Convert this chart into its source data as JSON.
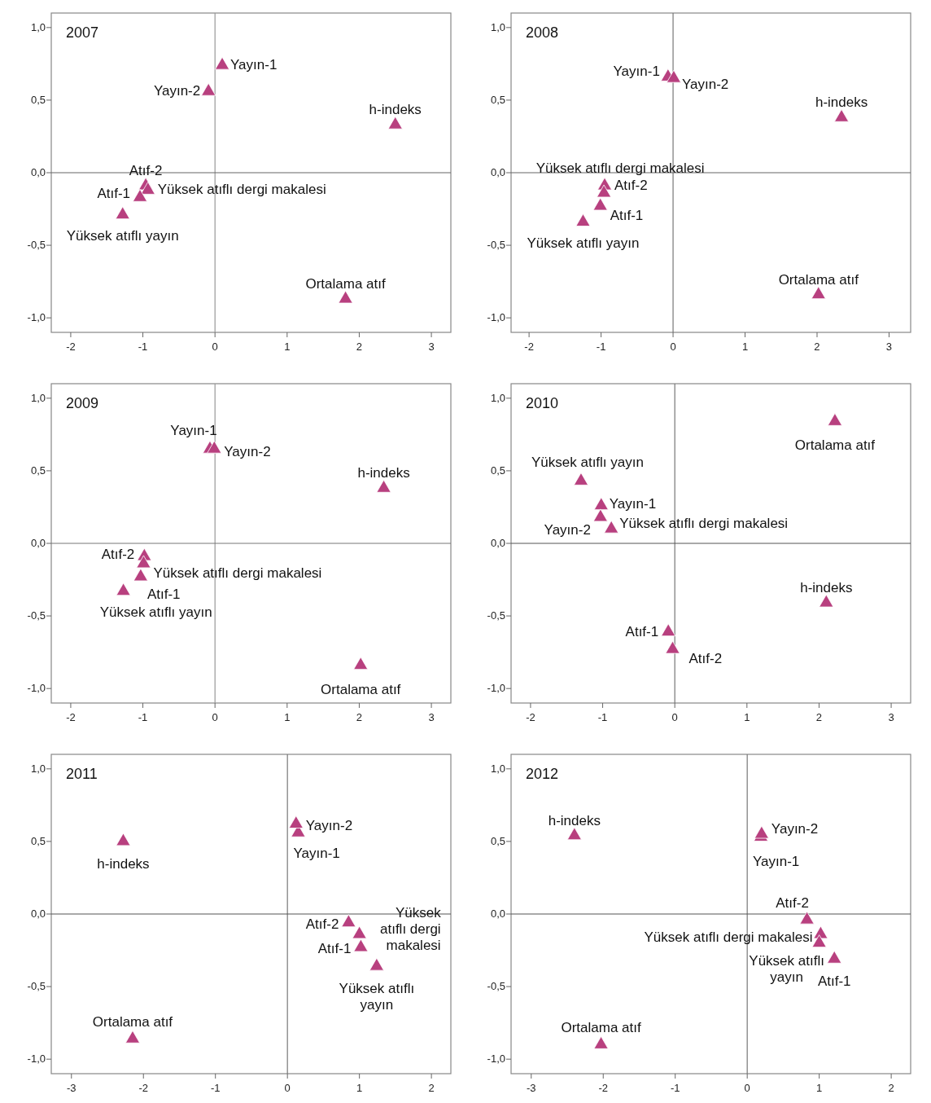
{
  "chart_data": [
    {
      "type": "scatter",
      "title": "2007",
      "marker": "triangle",
      "x": [
        0.1,
        -0.09,
        2.5,
        -0.96,
        -0.93,
        -1.04,
        -1.28,
        1.81
      ],
      "series": [
        {
          "color": "#b8407f",
          "values": [
            0.74,
            0.56,
            0.33,
            -0.09,
            -0.12,
            -0.17,
            -0.29,
            -0.87
          ]
        }
      ],
      "xlim": [
        -2.27,
        3.27
      ],
      "ylim": [
        -1.1,
        1.1
      ],
      "xticks": [
        -2,
        -1,
        0,
        1,
        2,
        3
      ],
      "yticks": [
        {
          "value": -1,
          "label": "-1,0"
        },
        {
          "value": -0.5,
          "label": "-0,5"
        },
        {
          "value": 0,
          "label": "0,0"
        },
        {
          "value": 0.5,
          "label": "0,5"
        },
        {
          "value": 1,
          "label": "1,0"
        }
      ],
      "ref_lines": [
        {
          "axis": "x",
          "value": 0,
          "color": "#999999"
        },
        {
          "axis": "y",
          "value": 0,
          "color": "#666666"
        }
      ],
      "annotations": [
        {
          "text": "Yayın-1",
          "x": 0.1,
          "y": 0.74
        },
        {
          "text": "Yayın-2",
          "x": -0.09,
          "y": 0.56
        },
        {
          "text": "h-indeks",
          "x": 2.5,
          "y": 0.33
        },
        {
          "text": "Atıf-2",
          "x": -0.96,
          "y": -0.09
        },
        {
          "text": "Yüksek atıflı dergi makalesi",
          "x": -0.93,
          "y": -0.12
        },
        {
          "text": "Atıf-1",
          "x": -1.04,
          "y": -0.17
        },
        {
          "text": "Yüksek atıflı yayın",
          "x": -1.28,
          "y": -0.29
        },
        {
          "text": "Ortalama atıf",
          "x": 1.81,
          "y": -0.87
        }
      ]
    },
    {
      "type": "scatter",
      "title": "2008",
      "marker": "triangle",
      "x": [
        -0.07,
        0.01,
        2.34,
        -0.95,
        -0.96,
        -1.01,
        -1.25,
        2.02
      ],
      "series": [
        {
          "color": "#b8407f",
          "values": [
            0.66,
            0.65,
            0.38,
            -0.09,
            -0.14,
            -0.23,
            -0.34,
            -0.84
          ]
        }
      ],
      "xlim": [
        -2.25,
        3.3
      ],
      "ylim": [
        -1.1,
        1.1
      ],
      "xticks": [
        -2,
        -1,
        0,
        1,
        2,
        3
      ],
      "yticks": [
        {
          "value": -1,
          "label": "-1,0"
        },
        {
          "value": -0.5,
          "label": "-0,5"
        },
        {
          "value": 0,
          "label": "0,0"
        },
        {
          "value": 0.5,
          "label": "0,5"
        },
        {
          "value": 1,
          "label": "1,0"
        }
      ],
      "ref_lines": [
        {
          "axis": "x",
          "value": 0,
          "color": "#777777"
        },
        {
          "axis": "y",
          "value": 0,
          "color": "#666666"
        }
      ],
      "annotations": [
        {
          "text": "Yayın-1",
          "x": -0.07,
          "y": 0.66
        },
        {
          "text": "Yayın-2",
          "x": 0.01,
          "y": 0.65
        },
        {
          "text": "h-indeks",
          "x": 2.34,
          "y": 0.38
        },
        {
          "text": "Atıf-2",
          "x": -0.95,
          "y": -0.09
        },
        {
          "text": "Yüksek atıflı dergi makalesi",
          "x": -0.96,
          "y": -0.14
        },
        {
          "text": "Atıf-1",
          "x": -1.01,
          "y": -0.23
        },
        {
          "text": "Yüksek atıflı yayın",
          "x": -1.25,
          "y": -0.34
        },
        {
          "text": "Ortalama atıf",
          "x": 2.02,
          "y": -0.84
        }
      ]
    },
    {
      "type": "scatter",
      "title": "2009",
      "marker": "triangle",
      "x": [
        -0.07,
        -0.01,
        2.34,
        -0.98,
        -0.99,
        -1.03,
        -1.27,
        2.02
      ],
      "series": [
        {
          "color": "#b8407f",
          "values": [
            0.65,
            0.65,
            0.38,
            -0.09,
            -0.14,
            -0.23,
            -0.33,
            -0.84
          ]
        }
      ],
      "xlim": [
        -2.27,
        3.27
      ],
      "ylim": [
        -1.1,
        1.1
      ],
      "xticks": [
        -2,
        -1,
        0,
        1,
        2,
        3
      ],
      "yticks": [
        {
          "value": -1,
          "label": "-1,0"
        },
        {
          "value": -0.5,
          "label": "-0,5"
        },
        {
          "value": 0,
          "label": "0,0"
        },
        {
          "value": 0.5,
          "label": "0,5"
        },
        {
          "value": 1,
          "label": "1,0"
        }
      ],
      "ref_lines": [
        {
          "axis": "x",
          "value": 0,
          "color": "#999999"
        },
        {
          "axis": "y",
          "value": 0,
          "color": "#777777"
        }
      ],
      "annotations": [
        {
          "text": "Yayın-1",
          "x": -0.07,
          "y": 0.65
        },
        {
          "text": "Yayın-2",
          "x": -0.01,
          "y": 0.65
        },
        {
          "text": "h-indeks",
          "x": 2.34,
          "y": 0.38
        },
        {
          "text": "Atıf-2",
          "x": -0.98,
          "y": -0.09
        },
        {
          "text": "Yüksek atıflı dergi makalesi",
          "x": -0.99,
          "y": -0.14
        },
        {
          "text": "Atıf-1",
          "x": -1.03,
          "y": -0.23
        },
        {
          "text": "Yüksek atıflı yayın",
          "x": -1.27,
          "y": -0.33
        },
        {
          "text": "Ortalama atıf",
          "x": 2.02,
          "y": -0.84
        }
      ]
    },
    {
      "type": "scatter",
      "title": "2010",
      "marker": "triangle",
      "x": [
        -1.02,
        -1.03,
        2.1,
        -0.03,
        -0.88,
        -0.09,
        -1.3,
        2.22
      ],
      "series": [
        {
          "color": "#b8407f",
          "values": [
            0.26,
            0.18,
            -0.41,
            -0.73,
            0.1,
            -0.61,
            0.43,
            0.84
          ]
        }
      ],
      "xlim": [
        -2.27,
        3.27
      ],
      "ylim": [
        -1.1,
        1.1
      ],
      "xticks": [
        -2,
        -1,
        0,
        1,
        2,
        3
      ],
      "yticks": [
        {
          "value": -1,
          "label": "-1,0"
        },
        {
          "value": -0.5,
          "label": "-0,5"
        },
        {
          "value": 0,
          "label": "0,0"
        },
        {
          "value": 0.5,
          "label": "0,5"
        },
        {
          "value": 1,
          "label": "1,0"
        }
      ],
      "ref_lines": [
        {
          "axis": "x",
          "value": 0,
          "color": "#777777"
        },
        {
          "axis": "y",
          "value": 0,
          "color": "#555555"
        }
      ],
      "annotations": [
        {
          "text": "Yayın-1",
          "x": -1.02,
          "y": 0.26
        },
        {
          "text": "Yayın-2",
          "x": -1.03,
          "y": 0.18
        },
        {
          "text": "h-indeks",
          "x": 2.1,
          "y": -0.41
        },
        {
          "text": "Atıf-2",
          "x": -0.03,
          "y": -0.73
        },
        {
          "text": "Yüksek atıflı dergi makalesi",
          "x": -0.88,
          "y": 0.1
        },
        {
          "text": "Atıf-1",
          "x": -0.09,
          "y": -0.61
        },
        {
          "text": "Yüksek atıflı yayın",
          "x": -1.3,
          "y": 0.43
        },
        {
          "text": "Ortalama atıf",
          "x": 2.22,
          "y": 0.84
        }
      ]
    },
    {
      "type": "scatter",
      "title": "2011",
      "marker": "triangle",
      "x": [
        0.15,
        0.12,
        -2.28,
        0.85,
        1.0,
        1.02,
        1.24,
        -2.15
      ],
      "series": [
        {
          "color": "#b8407f",
          "values": [
            0.56,
            0.62,
            0.5,
            -0.06,
            -0.14,
            -0.23,
            -0.36,
            -0.86
          ]
        }
      ],
      "xlim": [
        -3.28,
        2.27
      ],
      "ylim": [
        -1.1,
        1.1
      ],
      "xticks": [
        -3,
        -2,
        -1,
        0,
        1,
        2
      ],
      "yticks": [
        {
          "value": -1,
          "label": "-1,0"
        },
        {
          "value": -0.5,
          "label": "-0,5"
        },
        {
          "value": 0,
          "label": "0,0"
        },
        {
          "value": 0.5,
          "label": "0,5"
        },
        {
          "value": 1,
          "label": "1,0"
        }
      ],
      "ref_lines": [
        {
          "axis": "x",
          "value": 0,
          "color": "#777777"
        },
        {
          "axis": "y",
          "value": 0,
          "color": "#555555"
        }
      ],
      "annotations": [
        {
          "text": "Yayın-1",
          "x": 0.15,
          "y": 0.56
        },
        {
          "text": "Yayın-2",
          "x": 0.12,
          "y": 0.62
        },
        {
          "text": "h-indeks",
          "x": -2.28,
          "y": 0.5
        },
        {
          "text": "Atıf-2",
          "x": 0.85,
          "y": -0.06
        },
        {
          "text": "Yüksek atıflı dergi makalesi",
          "x": 1.0,
          "y": -0.14
        },
        {
          "text": "Atıf-1",
          "x": 1.02,
          "y": -0.23
        },
        {
          "text": "Yüksek atıflı yayın",
          "x": 1.24,
          "y": -0.36
        },
        {
          "text": "Ortalama atıf",
          "x": -2.15,
          "y": -0.86
        }
      ]
    },
    {
      "type": "scatter",
      "title": "2012",
      "marker": "triangle",
      "x": [
        0.19,
        0.2,
        -2.4,
        0.83,
        1.02,
        1.0,
        1.21,
        -2.03
      ],
      "series": [
        {
          "color": "#b8407f",
          "values": [
            0.53,
            0.55,
            0.54,
            -0.04,
            -0.14,
            -0.2,
            -0.31,
            -0.9
          ]
        }
      ],
      "xlim": [
        -3.28,
        2.27
      ],
      "ylim": [
        -1.1,
        1.1
      ],
      "xticks": [
        -3,
        -2,
        -1,
        0,
        1,
        2
      ],
      "yticks": [
        {
          "value": -1,
          "label": "-1,0"
        },
        {
          "value": -0.5,
          "label": "-0,5"
        },
        {
          "value": 0,
          "label": "0,0"
        },
        {
          "value": 0.5,
          "label": "0,5"
        },
        {
          "value": 1,
          "label": "1,0"
        }
      ],
      "ref_lines": [
        {
          "axis": "x",
          "value": 0,
          "color": "#777777"
        },
        {
          "axis": "y",
          "value": 0,
          "color": "#555555"
        }
      ],
      "annotations": [
        {
          "text": "Yayın-1",
          "x": 0.19,
          "y": 0.53
        },
        {
          "text": "Yayın-2",
          "x": 0.2,
          "y": 0.55
        },
        {
          "text": "h-indeks",
          "x": -2.4,
          "y": 0.54
        },
        {
          "text": "Atıf-2",
          "x": 0.83,
          "y": -0.04
        },
        {
          "text": "Yüksek atıflı dergi makalesi",
          "x": 1.02,
          "y": -0.14
        },
        {
          "text": "Yüksek atıflı yayın",
          "x": 1.0,
          "y": -0.2
        },
        {
          "text": "Atıf-1",
          "x": 1.21,
          "y": -0.31
        },
        {
          "text": "Ortalama atıf",
          "x": -2.03,
          "y": -0.9
        }
      ]
    }
  ]
}
